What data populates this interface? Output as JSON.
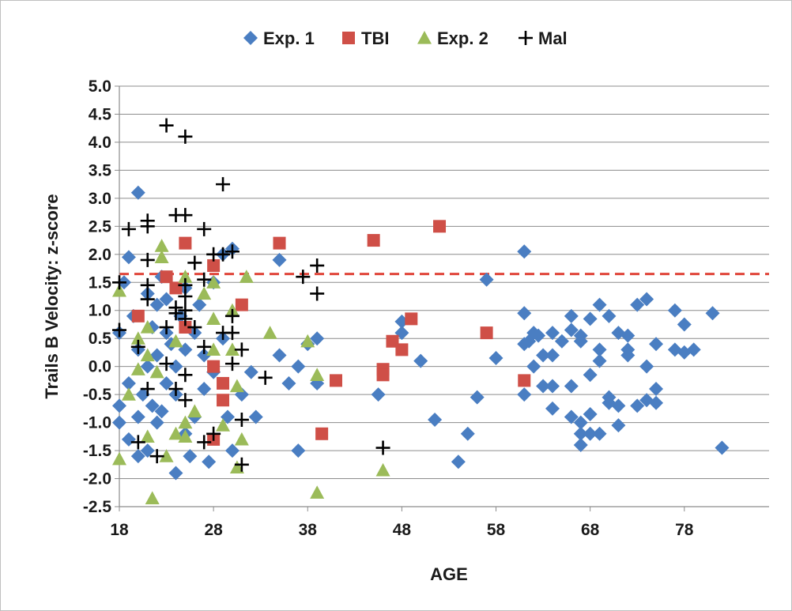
{
  "chart_data": {
    "type": "scatter",
    "xlabel": "AGE",
    "ylabel": "Trails B Velocity: z-score",
    "xlim": [
      18,
      87
    ],
    "ylim": [
      -2.5,
      5.0
    ],
    "x_ticks": [
      18,
      28,
      38,
      48,
      58,
      68,
      78
    ],
    "y_ticks": [
      5.0,
      4.5,
      4.0,
      3.5,
      3.0,
      2.5,
      2.0,
      1.5,
      1.0,
      0.5,
      0.0,
      -0.5,
      -1.0,
      -1.5,
      -2.0,
      -2.5
    ],
    "grid": "horizontal",
    "legend_position": "top",
    "reference_line": {
      "y": 1.65,
      "style": "dashed",
      "color": "#e0453a"
    },
    "series": [
      {
        "name": "Exp. 1",
        "marker": "diamond",
        "color": "#4a7ec2",
        "points": [
          [
            18,
            0.6
          ],
          [
            18,
            -0.7
          ],
          [
            18,
            -1.0
          ],
          [
            18.5,
            1.5
          ],
          [
            19,
            1.95
          ],
          [
            19,
            -0.3
          ],
          [
            19,
            -1.3
          ],
          [
            19.5,
            0.9
          ],
          [
            20,
            -1.6
          ],
          [
            20,
            3.1
          ],
          [
            20,
            0.3
          ],
          [
            20,
            -0.9
          ],
          [
            20.5,
            -0.5
          ],
          [
            21,
            1.3
          ],
          [
            21,
            -1.5
          ],
          [
            21,
            0.0
          ],
          [
            21.5,
            0.7
          ],
          [
            21.5,
            -0.7
          ],
          [
            22,
            1.1
          ],
          [
            22,
            0.2
          ],
          [
            22,
            -1.0
          ],
          [
            22.5,
            1.6
          ],
          [
            22.5,
            -0.8
          ],
          [
            23,
            0.6
          ],
          [
            23,
            -0.3
          ],
          [
            23,
            1.2
          ],
          [
            23.5,
            0.4
          ],
          [
            24,
            -1.9
          ],
          [
            24,
            0.0
          ],
          [
            24,
            -0.5
          ],
          [
            24.5,
            0.9
          ],
          [
            25,
            -1.2
          ],
          [
            25,
            1.4
          ],
          [
            25,
            0.3
          ],
          [
            25.5,
            -1.6
          ],
          [
            26,
            0.6
          ],
          [
            26,
            -0.9
          ],
          [
            26.5,
            1.1
          ],
          [
            27,
            -0.4
          ],
          [
            27,
            0.2
          ],
          [
            27.5,
            -1.7
          ],
          [
            28,
            1.5
          ],
          [
            28,
            -0.1
          ],
          [
            29,
            2.0
          ],
          [
            29,
            0.5
          ],
          [
            29.5,
            -0.9
          ],
          [
            30,
            2.1
          ],
          [
            30,
            -1.5
          ],
          [
            31,
            -0.5
          ],
          [
            32,
            -0.1
          ],
          [
            32.5,
            -0.9
          ],
          [
            35,
            1.9
          ],
          [
            35,
            0.2
          ],
          [
            36,
            -0.3
          ],
          [
            37,
            0.0
          ],
          [
            37,
            -1.5
          ],
          [
            38,
            0.4
          ],
          [
            39,
            -0.3
          ],
          [
            39,
            0.5
          ],
          [
            45.5,
            -0.5
          ],
          [
            48,
            0.6
          ],
          [
            48,
            0.8
          ],
          [
            50,
            0.1
          ],
          [
            51.5,
            -0.95
          ],
          [
            54,
            -1.7
          ],
          [
            55,
            -1.2
          ],
          [
            56,
            -0.55
          ],
          [
            57,
            1.55
          ],
          [
            58,
            0.15
          ],
          [
            61,
            2.05
          ],
          [
            61,
            0.95
          ],
          [
            61,
            0.4
          ],
          [
            61,
            -0.5
          ],
          [
            61.5,
            0.45
          ],
          [
            62,
            0.6
          ],
          [
            62,
            0.0
          ],
          [
            62.5,
            0.55
          ],
          [
            63,
            0.2
          ],
          [
            63,
            -0.35
          ],
          [
            64,
            0.6
          ],
          [
            64,
            0.2
          ],
          [
            64,
            -0.35
          ],
          [
            64,
            -0.75
          ],
          [
            65,
            0.45
          ],
          [
            66,
            0.9
          ],
          [
            66,
            0.65
          ],
          [
            66,
            -0.35
          ],
          [
            66,
            -0.9
          ],
          [
            67,
            0.55
          ],
          [
            67,
            0.45
          ],
          [
            67,
            -1.0
          ],
          [
            67,
            -1.2
          ],
          [
            67,
            -1.4
          ],
          [
            68,
            0.85
          ],
          [
            68,
            -0.15
          ],
          [
            68,
            -0.85
          ],
          [
            68,
            -1.2
          ],
          [
            69,
            1.1
          ],
          [
            69,
            0.3
          ],
          [
            69,
            0.1
          ],
          [
            69,
            -1.2
          ],
          [
            70,
            0.9
          ],
          [
            70,
            -0.55
          ],
          [
            70,
            -0.65
          ],
          [
            71,
            0.6
          ],
          [
            71,
            -0.7
          ],
          [
            71,
            -1.05
          ],
          [
            72,
            0.55
          ],
          [
            72,
            0.3
          ],
          [
            72,
            0.2
          ],
          [
            73,
            1.1
          ],
          [
            73,
            -0.7
          ],
          [
            74,
            1.2
          ],
          [
            74,
            0.0
          ],
          [
            74,
            -0.6
          ],
          [
            75,
            0.4
          ],
          [
            75,
            -0.4
          ],
          [
            75,
            -0.65
          ],
          [
            77,
            1.0
          ],
          [
            77,
            0.3
          ],
          [
            78,
            0.75
          ],
          [
            78,
            0.25
          ],
          [
            79,
            0.3
          ],
          [
            81,
            0.95
          ],
          [
            82,
            -1.45
          ]
        ]
      },
      {
        "name": "TBI",
        "marker": "square",
        "color": "#cf4f47",
        "points": [
          [
            20,
            0.9
          ],
          [
            23,
            1.6
          ],
          [
            24,
            1.4
          ],
          [
            25,
            2.2
          ],
          [
            25,
            0.7
          ],
          [
            28,
            1.8
          ],
          [
            28,
            0.0
          ],
          [
            28,
            -1.3
          ],
          [
            29,
            -0.3
          ],
          [
            29,
            -0.6
          ],
          [
            31,
            1.1
          ],
          [
            35,
            2.2
          ],
          [
            39.5,
            -1.2
          ],
          [
            41,
            -0.25
          ],
          [
            45,
            2.25
          ],
          [
            46,
            -0.05
          ],
          [
            46,
            -0.15
          ],
          [
            47,
            0.45
          ],
          [
            48,
            0.3
          ],
          [
            49,
            0.85
          ],
          [
            52,
            2.5
          ],
          [
            57,
            0.6
          ],
          [
            61,
            -0.25
          ]
        ]
      },
      {
        "name": "Exp. 2",
        "marker": "triangle",
        "color": "#9bbb59",
        "points": [
          [
            18,
            1.35
          ],
          [
            18,
            -1.65
          ],
          [
            19,
            -0.5
          ],
          [
            20,
            0.5
          ],
          [
            20,
            -0.05
          ],
          [
            21,
            0.7
          ],
          [
            21,
            0.2
          ],
          [
            21,
            -1.25
          ],
          [
            21.5,
            -2.35
          ],
          [
            22,
            -0.1
          ],
          [
            22.5,
            1.95
          ],
          [
            22.5,
            2.15
          ],
          [
            23,
            -1.6
          ],
          [
            24,
            -1.2
          ],
          [
            24,
            0.45
          ],
          [
            25,
            1.6
          ],
          [
            25,
            -1.0
          ],
          [
            25,
            -1.25
          ],
          [
            26,
            -0.8
          ],
          [
            27,
            1.3
          ],
          [
            28,
            1.5
          ],
          [
            28,
            0.85
          ],
          [
            28,
            0.3
          ],
          [
            29,
            -1.05
          ],
          [
            30,
            1.0
          ],
          [
            30,
            0.3
          ],
          [
            30.5,
            -0.35
          ],
          [
            30.5,
            -1.8
          ],
          [
            31,
            -1.3
          ],
          [
            31.5,
            1.6
          ],
          [
            34,
            0.6
          ],
          [
            38,
            0.45
          ],
          [
            39,
            -0.15
          ],
          [
            39,
            -2.25
          ],
          [
            46,
            -1.85
          ]
        ]
      },
      {
        "name": "Mal",
        "marker": "plus",
        "color": "#000000",
        "points": [
          [
            18,
            1.5
          ],
          [
            18,
            0.65
          ],
          [
            19,
            2.45
          ],
          [
            20,
            -1.35
          ],
          [
            20,
            0.35
          ],
          [
            21,
            2.6
          ],
          [
            21,
            2.5
          ],
          [
            21,
            1.9
          ],
          [
            21,
            1.45
          ],
          [
            21,
            1.2
          ],
          [
            21,
            -0.4
          ],
          [
            22,
            -1.6
          ],
          [
            23,
            4.3
          ],
          [
            23,
            0.7
          ],
          [
            23,
            0.05
          ],
          [
            24,
            2.7
          ],
          [
            24,
            1.05
          ],
          [
            24,
            0.95
          ],
          [
            24,
            -0.4
          ],
          [
            25,
            4.1
          ],
          [
            25,
            2.7
          ],
          [
            25,
            1.45
          ],
          [
            25,
            1.25
          ],
          [
            25,
            1.0
          ],
          [
            25,
            0.85
          ],
          [
            25,
            -0.15
          ],
          [
            25,
            -0.6
          ],
          [
            26,
            1.85
          ],
          [
            26,
            0.7
          ],
          [
            27,
            2.45
          ],
          [
            27,
            1.55
          ],
          [
            27,
            0.35
          ],
          [
            27,
            -1.35
          ],
          [
            28,
            2.0
          ],
          [
            28,
            -1.2
          ],
          [
            29,
            3.25
          ],
          [
            29,
            2.0
          ],
          [
            29,
            0.6
          ],
          [
            30,
            2.05
          ],
          [
            30,
            0.9
          ],
          [
            30,
            0.6
          ],
          [
            30,
            0.05
          ],
          [
            31,
            0.3
          ],
          [
            31,
            -0.95
          ],
          [
            31,
            -1.75
          ],
          [
            33.5,
            -0.2
          ],
          [
            37.5,
            1.6
          ],
          [
            39,
            1.8
          ],
          [
            39,
            1.3
          ],
          [
            46,
            -1.45
          ]
        ]
      }
    ]
  }
}
